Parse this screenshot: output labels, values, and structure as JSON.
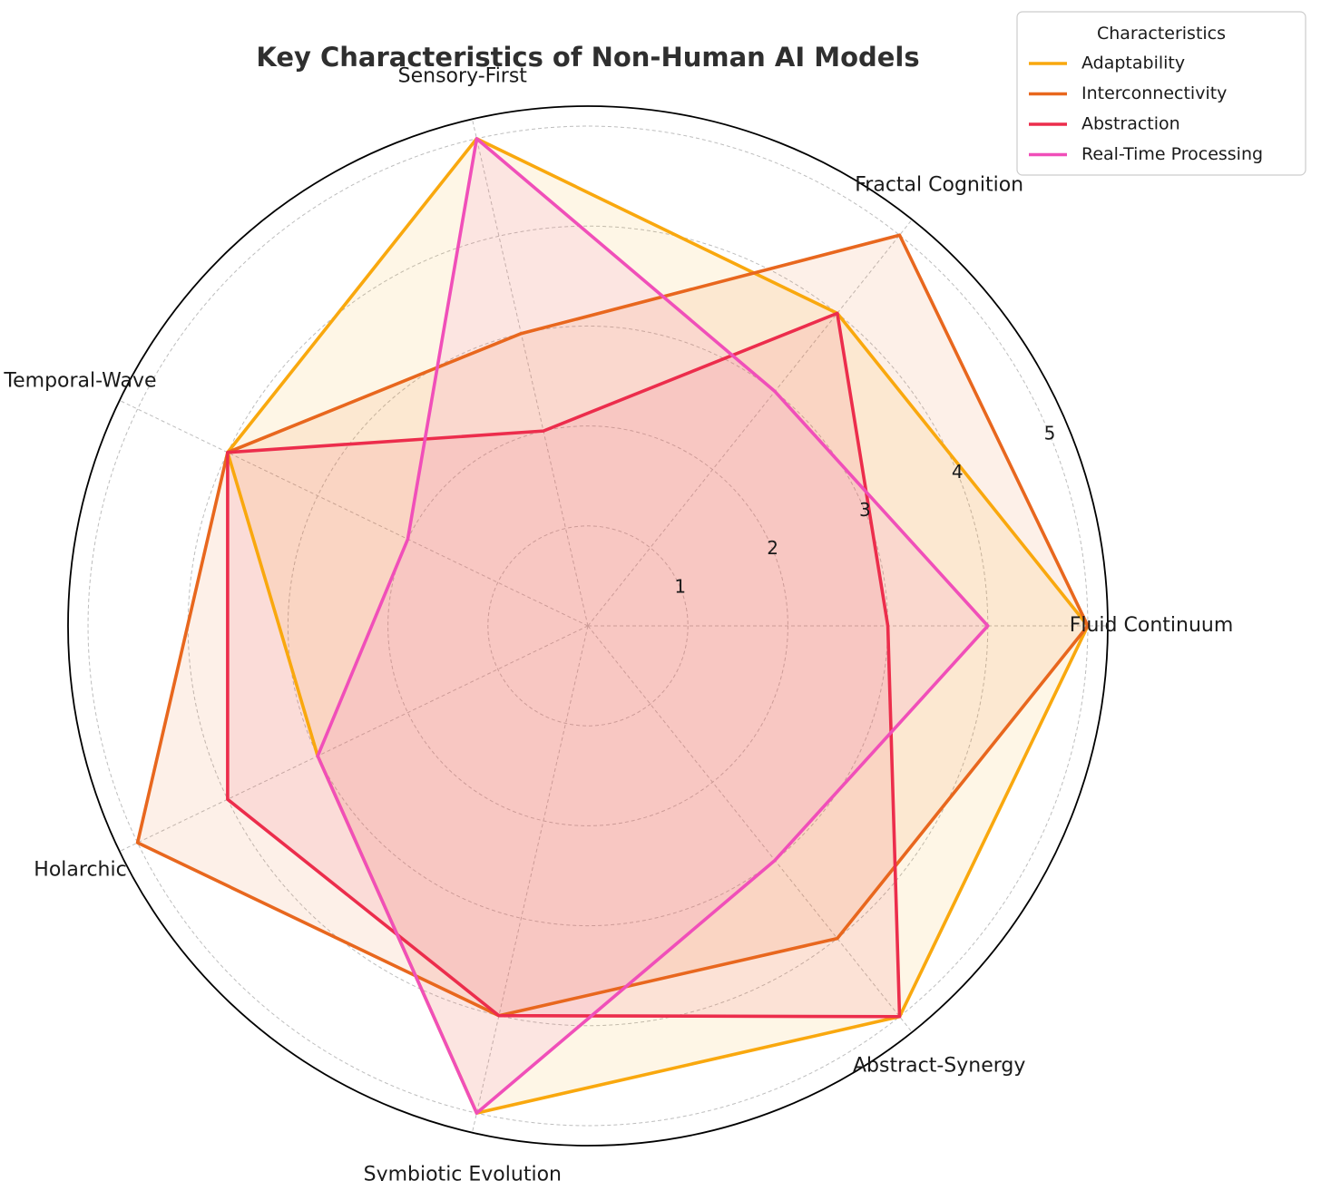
{
  "chart_data": {
    "type": "radar",
    "title": "Key Characteristics of Non-Human AI Models",
    "categories": [
      "Fluid Continuum",
      "Fractal Cognition",
      "Sensory-First",
      "Temporal-Wave",
      "Holarchic",
      "Symbiotic Evolution",
      "Abstract-Synergy"
    ],
    "rlim": [
      0,
      5.2
    ],
    "rticks": [
      1,
      2,
      3,
      4,
      5
    ],
    "rtick_labels": [
      "1",
      "2",
      "3",
      "4",
      "5"
    ],
    "grid": true,
    "legend_title": "Characteristics",
    "legend_position": "top-right",
    "series": [
      {
        "name": "Adaptability",
        "color": "#F9A80E",
        "values": [
          5,
          4,
          5,
          4,
          3,
          5,
          5
        ]
      },
      {
        "name": "Interconnectivity",
        "color": "#E8671E",
        "values": [
          5,
          5,
          3,
          4,
          5,
          4,
          4
        ]
      },
      {
        "name": "Abstraction",
        "color": "#EC2D4C",
        "values": [
          3,
          4,
          2,
          4,
          4,
          4,
          5
        ]
      },
      {
        "name": "Real-Time Processing",
        "color": "#F04FB9",
        "values": [
          4,
          3,
          5,
          2,
          3,
          5,
          3
        ]
      }
    ]
  }
}
